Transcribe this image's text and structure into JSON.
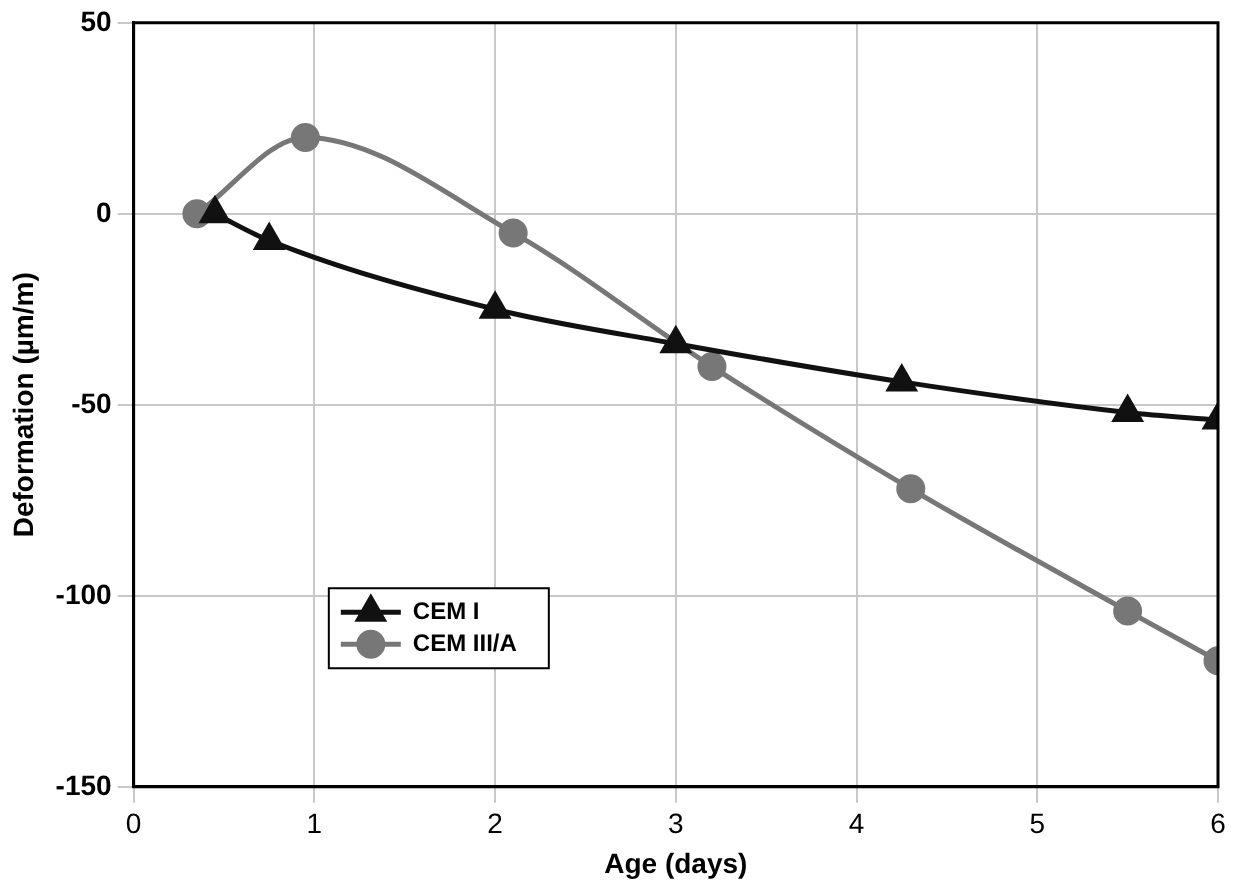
{
  "chart_data": {
    "type": "line",
    "xlabel": "Age (days)",
    "ylabel": "Deformation (µm/m)",
    "xlim": [
      0,
      6
    ],
    "xticks": [
      0,
      1,
      2,
      3,
      4,
      5,
      6
    ],
    "ylim": [
      -150,
      50
    ],
    "yticks": [
      -150,
      -100,
      -50,
      0,
      50
    ],
    "grid": true,
    "legend": "bottom left",
    "line_style": "solid",
    "series": [
      {
        "name": "CEM I",
        "color": "#111111",
        "marker": "triangle",
        "x": [
          0.45,
          0.75,
          2,
          3,
          4.25,
          5.5,
          6
        ],
        "values": [
          0,
          -7,
          -25,
          -34,
          -44,
          -52,
          -54
        ]
      },
      {
        "name": "CEM III/A",
        "color": "#777777",
        "marker": "circle",
        "x": [
          0.35,
          0.95,
          2.1,
          3.2,
          4.3,
          5.5,
          6
        ],
        "values": [
          0,
          20,
          -5,
          -40,
          -72,
          -104,
          -117
        ]
      }
    ]
  }
}
